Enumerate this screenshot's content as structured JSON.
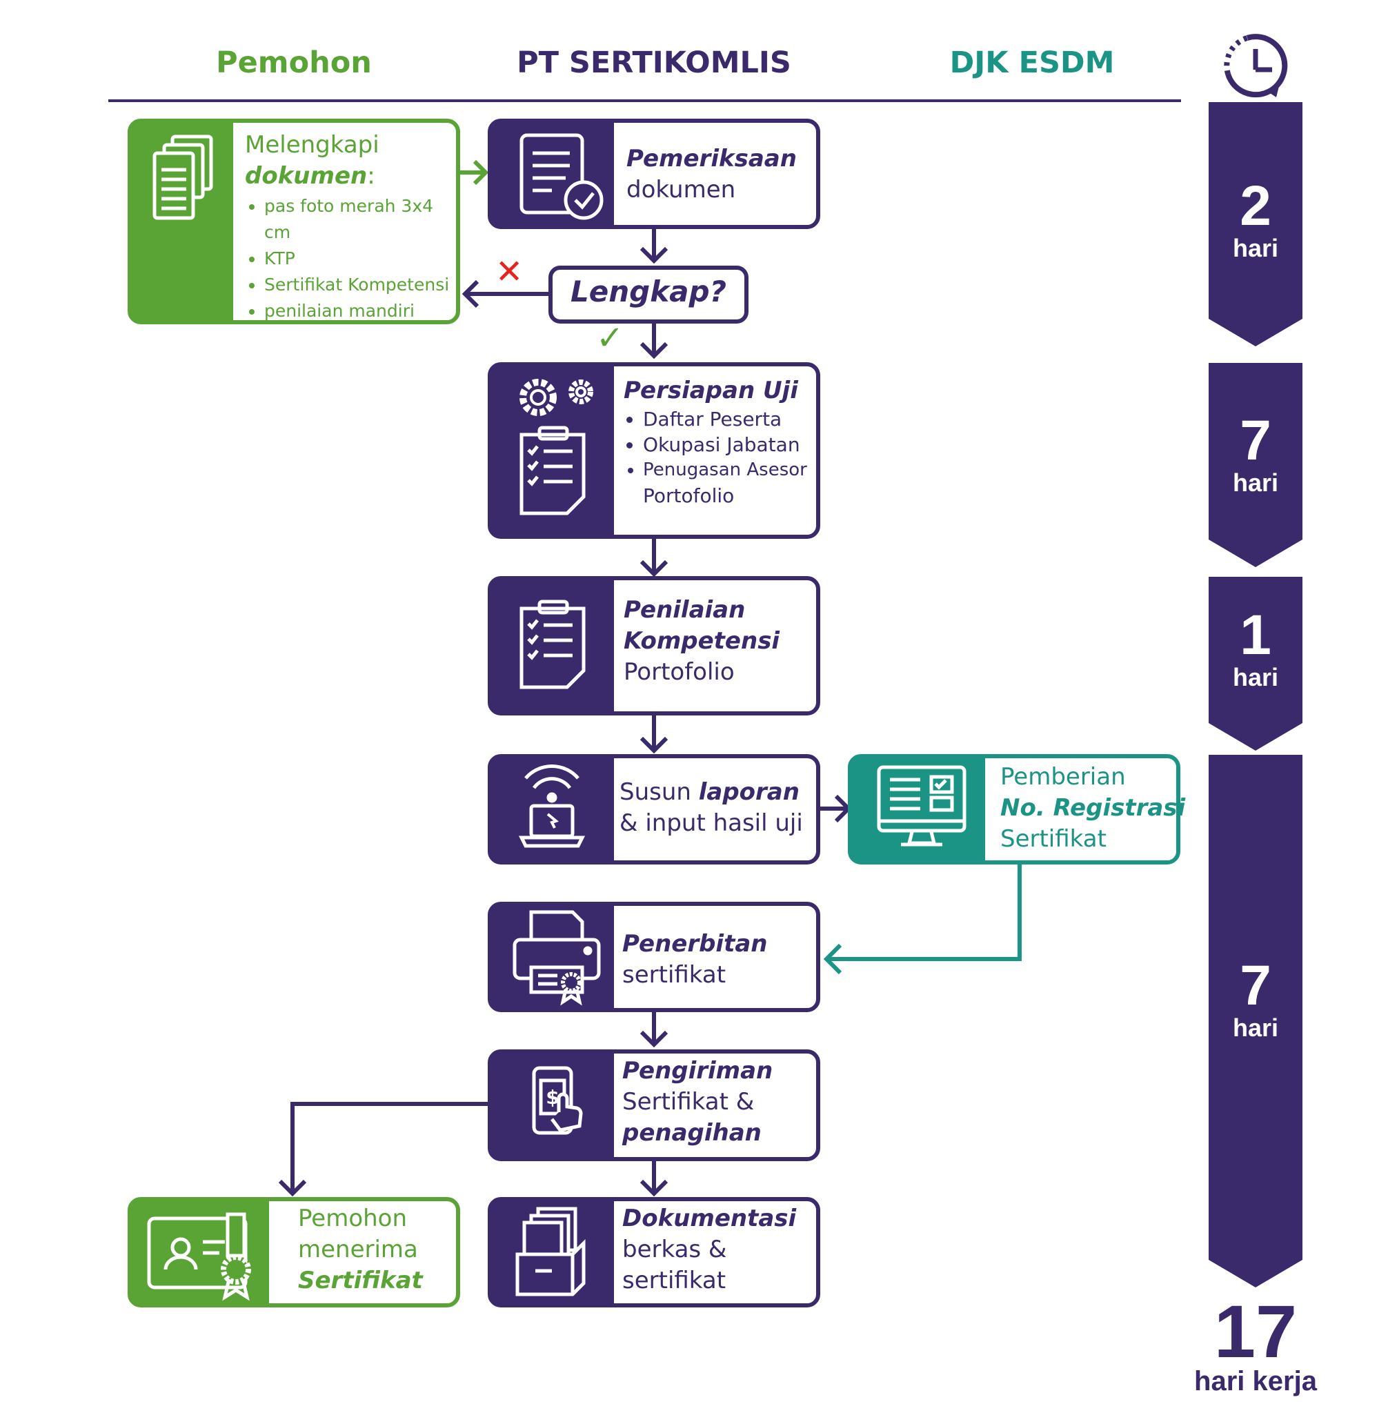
{
  "columns": {
    "applicant": "Pemohon",
    "provider": "PT SERTIKOMLIS",
    "regulator": "DJK ESDM"
  },
  "steps": {
    "melengkapi": {
      "line1": "Melengkapi",
      "line2": "dokumen",
      "colon": ":",
      "items": [
        "pas foto merah 3x4 cm",
        "KTP",
        "Sertifikat Kompetensi",
        "penilaian mandiri"
      ]
    },
    "pemeriksaan": {
      "line1": "Pemeriksaan",
      "line2": "dokumen"
    },
    "decision": {
      "label": "Lengkap?",
      "no_mark": "✕",
      "yes_mark": "✓"
    },
    "persiapan": {
      "title": "Persiapan Uji",
      "items": [
        "Daftar Peserta",
        "Okupasi Jabatan",
        "Penugasan Asesor"
      ],
      "extra": "Portofolio"
    },
    "penilaian": {
      "line1": "Penilaian",
      "line2": "Kompetensi",
      "line3": "Portofolio"
    },
    "susun": {
      "prefix": "Susun ",
      "emph": "laporan",
      "line2": "& input hasil uji"
    },
    "pemberian": {
      "line1": "Pemberian",
      "line2": "No. Registrasi",
      "line3": "Sertifikat"
    },
    "penerbitan": {
      "line1": "Penerbitan",
      "line2": "sertifikat"
    },
    "pengiriman": {
      "line1": "Pengiriman",
      "line2": "Sertifikat &",
      "line3": "penagihan"
    },
    "dokumentasi": {
      "line1": "Dokumentasi",
      "line2": "berkas &",
      "line3": "sertifikat"
    },
    "menerima": {
      "line1": "Pemohon",
      "line2": "menerima",
      "line3": "Sertifikat"
    }
  },
  "timeline": {
    "segments": [
      {
        "value": "2",
        "unit": "hari"
      },
      {
        "value": "7",
        "unit": "hari"
      },
      {
        "value": "1",
        "unit": "hari"
      },
      {
        "value": "7",
        "unit": "hari"
      }
    ],
    "total_value": "17",
    "total_unit": "hari kerja"
  },
  "colors": {
    "purple": "#3a2a6b",
    "green": "#5aa335",
    "teal": "#1b9485",
    "red": "#e8221c"
  }
}
